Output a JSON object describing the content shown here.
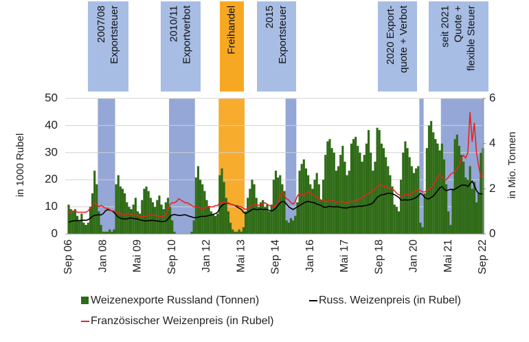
{
  "chart_data": {
    "type": "bar-line",
    "y_label": "in 1000 Rubel",
    "y2_label": "in Mio. Tonnen",
    "ylim": [
      0,
      50
    ],
    "yticks": [
      0,
      10,
      20,
      30,
      40,
      50
    ],
    "y2lim": [
      0,
      6
    ],
    "y2ticks": [
      0,
      2,
      4,
      6
    ],
    "grid": true,
    "legend": "bottom",
    "categories": [
      "Sep 06",
      null,
      null,
      null,
      null,
      null,
      null,
      null,
      null,
      null,
      null,
      null,
      null,
      null,
      null,
      null,
      "Jan 08",
      null,
      null,
      null,
      null,
      null,
      null,
      null,
      null,
      null,
      null,
      null,
      null,
      null,
      null,
      null,
      "Mai 09",
      null,
      null,
      null,
      null,
      null,
      null,
      null,
      null,
      null,
      null,
      null,
      null,
      null,
      null,
      null,
      "Sep 10",
      null,
      null,
      null,
      null,
      null,
      null,
      null,
      null,
      null,
      null,
      null,
      null,
      null,
      null,
      null,
      "Jan 12",
      null,
      null,
      null,
      null,
      null,
      null,
      null,
      null,
      null,
      null,
      null,
      null,
      null,
      null,
      null,
      "Mai 13",
      null,
      null,
      null,
      null,
      null,
      null,
      null,
      null,
      null,
      null,
      null,
      null,
      null,
      null,
      null,
      "Sep 14",
      null,
      null,
      null,
      null,
      null,
      null,
      null,
      null,
      null,
      null,
      null,
      null,
      null,
      null,
      null,
      "Jan 16",
      null,
      null,
      null,
      null,
      null,
      null,
      null,
      null,
      null,
      null,
      null,
      null,
      null,
      null,
      null,
      "Mai 17",
      null,
      null,
      null,
      null,
      null,
      null,
      null,
      null,
      null,
      null,
      null,
      null,
      null,
      null,
      null,
      "Sep 18",
      null,
      null,
      null,
      null,
      null,
      null,
      null,
      null,
      null,
      null,
      null,
      null,
      null,
      null,
      null,
      "Jan 20",
      null,
      null,
      null,
      null,
      null,
      null,
      null,
      null,
      null,
      null,
      null,
      null,
      null,
      null,
      null,
      "Mai 21",
      null,
      null,
      null,
      null,
      null,
      null,
      null,
      null,
      null,
      null,
      null,
      null,
      null,
      null,
      null,
      "Sep 22"
    ],
    "periods": [
      {
        "lines": [
          "2007/08",
          "Exportsteuer"
        ],
        "span": [
          14,
          21
        ],
        "color": "#8ea2d4"
      },
      {
        "lines": [
          "2010/11",
          "Exportverbot"
        ],
        "span": [
          47,
          58
        ],
        "color": "#8ea2d4"
      },
      {
        "lines": [
          "Freihandel"
        ],
        "span": [
          70,
          81
        ],
        "color": "#f7a823"
      },
      {
        "lines": [
          "2015",
          "Exportsteuer"
        ],
        "span": [
          101,
          105
        ],
        "color": "#8ea2d4"
      },
      {
        "lines": [
          "2020 Export-",
          "quote + Verbot"
        ],
        "span": [
          163,
          164
        ],
        "color": "#8ea2d4"
      },
      {
        "lines": [
          "seit 2021",
          "Quote +",
          "flexible Steuer"
        ],
        "span": [
          173,
          192
        ],
        "color": "#8ea2d4"
      }
    ],
    "series": [
      {
        "name": "Weizenexporte Russland (Tonnen)",
        "type": "bar",
        "axis": "y2",
        "color": "#2f6b16",
        "values": [
          1.3,
          1.1,
          1.0,
          1.1,
          0.8,
          0.6,
          0.9,
          0.5,
          0.4,
          0.5,
          1.2,
          1.8,
          2.8,
          2.2,
          1.0,
          0.4,
          0.1,
          0.1,
          0.1,
          0.2,
          0.1,
          0.2,
          2.2,
          2.6,
          2.1,
          2.0,
          1.8,
          1.4,
          1.2,
          1.1,
          1.3,
          1.6,
          1.0,
          0.9,
          1.5,
          2.0,
          2.1,
          1.9,
          1.6,
          1.4,
          1.2,
          1.5,
          1.7,
          1.3,
          1.1,
          1.4,
          1.6,
          1.2,
          0.6,
          0.1,
          0.0,
          0,
          0,
          0,
          0,
          0,
          0,
          0.1,
          0.6,
          2.5,
          3.0,
          2.4,
          2.2,
          1.9,
          1.5,
          1.2,
          1.0,
          0.9,
          0.8,
          0.9,
          2.6,
          2.9,
          2.3,
          1.6,
          1.0,
          0.5,
          0.2,
          0.1,
          0.1,
          0.2,
          0.1,
          0.3,
          1.0,
          1.6,
          2.0,
          2.4,
          2.2,
          1.6,
          1.2,
          1.4,
          1.5,
          1.2,
          1.3,
          1.0,
          1.3,
          2.4,
          2.8,
          2.5,
          2.6,
          2.2,
          1.9,
          0.6,
          0.5,
          0.7,
          0.6,
          0.8,
          1.4,
          2.8,
          3.1,
          3.3,
          2.9,
          2.6,
          2.2,
          2.0,
          2.4,
          2.7,
          2.2,
          1.5,
          2.4,
          3.5,
          4.1,
          4.2,
          3.8,
          3.6,
          2.8,
          3.0,
          3.5,
          3.9,
          3.2,
          2.6,
          2.8,
          4.0,
          4.2,
          4.3,
          3.9,
          3.6,
          3.2,
          3.5,
          4.0,
          4.6,
          3.6,
          2.8,
          3.2,
          4.7,
          4.6,
          4.0,
          3.8,
          3.4,
          3.0,
          2.6,
          2.1,
          1.3,
          1.2,
          1.0,
          2.4,
          3.6,
          4.1,
          3.8,
          3.4,
          3.0,
          2.7,
          2.9,
          3.0,
          0.5,
          0.3,
          1.8,
          3.8,
          4.8,
          5.0,
          4.5,
          4.2,
          4.0,
          3.7,
          4.0,
          3.3,
          2.2,
          1.0,
          0.4,
          2.0,
          4.2,
          4.4,
          3.9,
          3.5,
          3.2,
          2.5,
          2.4,
          3.0,
          2.0,
          2.3,
          1.4,
          1.8,
          3.6,
          3.8
        ]
      },
      {
        "name": "Russ. Weizenpreis (in Rubel)",
        "type": "line",
        "color": "#000000",
        "values": [
          4.3,
          4.6,
          4.8,
          4.9,
          4.9,
          5.0,
          5.0,
          5.1,
          5.0,
          5.3,
          5.8,
          6.5,
          6.9,
          7.0,
          7.1,
          7.0,
          7.5,
          8.5,
          9.0,
          8.8,
          8.5,
          8.0,
          7.0,
          6.2,
          5.8,
          5.6,
          5.5,
          5.6,
          5.8,
          5.9,
          5.7,
          5.6,
          5.5,
          5.2,
          5.0,
          4.9,
          4.8,
          4.9,
          5.0,
          5.0,
          4.9,
          4.8,
          4.7,
          4.6,
          4.6,
          4.7,
          5.5,
          6.5,
          7.0,
          7.2,
          7.0,
          6.8,
          6.9,
          7.0,
          7.1,
          6.8,
          6.5,
          6.3,
          6.0,
          6.0,
          6.2,
          6.4,
          6.5,
          6.5,
          6.6,
          6.8,
          7.0,
          7.2,
          7.5,
          8.0,
          9.5,
          10.5,
          11.0,
          11.4,
          11.3,
          11.0,
          10.8,
          10.5,
          10.0,
          9.5,
          9.0,
          8.0,
          7.5,
          8.0,
          8.5,
          9.0,
          9.2,
          9.0,
          9.0,
          9.2,
          9.0,
          9.1,
          9.0,
          8.7,
          8.5,
          8.8,
          9.5,
          10.5,
          11.5,
          12.0,
          11.8,
          11.0,
          10.0,
          9.5,
          9.0,
          9.5,
          10.0,
          10.5,
          11.0,
          11.5,
          11.8,
          12.0,
          11.8,
          11.6,
          11.5,
          11.0,
          10.8,
          10.5,
          10.0,
          9.8,
          10.0,
          10.2,
          10.0,
          10.0,
          10.0,
          10.0,
          9.8,
          9.7,
          9.6,
          9.6,
          9.8,
          10.0,
          10.0,
          10.0,
          10.2,
          10.3,
          10.2,
          10.5,
          10.5,
          10.8,
          11.0,
          11.5,
          12.5,
          13.5,
          14.0,
          14.5,
          14.5,
          14.8,
          15.0,
          15.0,
          14.8,
          14.5,
          14.0,
          13.5,
          12.5,
          12.5,
          12.6,
          12.5,
          12.6,
          12.8,
          13.0,
          13.5,
          14.0,
          15.0,
          14.5,
          13.5,
          13.0,
          13.0,
          13.5,
          14.0,
          15.0,
          16.0,
          17.0,
          17.5,
          16.5,
          16.0,
          16.2,
          16.5,
          16.3,
          16.5,
          17.0,
          17.5,
          18.0,
          18.0,
          18.0,
          17.5,
          18.5,
          19.5,
          18.0,
          16.0,
          15.0,
          14.8,
          14.8
        ]
      },
      {
        "name": "Französischer Weizenpreis (in Rubel)",
        "type": "line",
        "color": "#e8231f",
        "values": [
          7.5,
          8.0,
          8.5,
          8.5,
          8.0,
          8.0,
          8.0,
          8.0,
          8.0,
          8.5,
          9.5,
          10.5,
          11.5,
          11.0,
          10.0,
          10.5,
          10.0,
          9.5,
          9.5,
          9.0,
          8.5,
          8.5,
          8.0,
          8.0,
          7.5,
          7.0,
          7.0,
          7.5,
          7.5,
          7.0,
          7.0,
          7.0,
          6.8,
          6.5,
          6.5,
          6.5,
          6.5,
          7.0,
          7.0,
          7.0,
          6.8,
          6.8,
          6.5,
          6.5,
          6.5,
          7.0,
          9.0,
          11.0,
          11.5,
          11.5,
          12.0,
          13.0,
          12.5,
          12.0,
          11.5,
          11.5,
          11.0,
          10.5,
          10.0,
          10.0,
          10.0,
          9.5,
          9.5,
          9.5,
          10.0,
          10.2,
          10.0,
          10.0,
          10.5,
          10.5,
          11.5,
          11.5,
          11.5,
          11.5,
          11.5,
          11.0,
          10.8,
          10.5,
          10.5,
          10.2,
          10.0,
          9.5,
          9.0,
          9.5,
          10.0,
          10.5,
          11.0,
          11.0,
          10.5,
          11.0,
          11.0,
          11.5,
          11.0,
          10.5,
          10.5,
          10.0,
          10.5,
          12.0,
          14.0,
          15.5,
          14.0,
          13.0,
          12.5,
          11.5,
          11.0,
          12.0,
          14.0,
          15.0,
          14.5,
          14.0,
          15.0,
          15.5,
          15.0,
          14.5,
          14.0,
          13.5,
          13.0,
          12.5,
          12.5,
          12.0,
          12.0,
          12.5,
          12.5,
          12.0,
          11.5,
          12.0,
          12.0,
          12.0,
          11.5,
          11.5,
          12.0,
          12.0,
          12.0,
          12.5,
          12.5,
          13.0,
          13.5,
          14.0,
          14.5,
          15.0,
          15.5,
          16.0,
          16.5,
          17.5,
          18.0,
          18.0,
          17.5,
          17.5,
          17.0,
          17.0,
          16.5,
          16.0,
          15.0,
          14.5,
          14.0,
          14.0,
          14.5,
          14.5,
          14.5,
          15.0,
          15.5,
          16.0,
          16.5,
          16.0,
          15.5,
          15.5,
          16.0,
          16.5,
          17.0,
          18.0,
          19.5,
          21.0,
          22.0,
          21.0,
          20.0,
          20.0,
          21.0,
          22.0,
          22.5,
          23.0,
          24.0,
          25.0,
          28.0,
          29.0,
          28.0,
          30.0,
          45.0,
          34.0,
          41.0,
          30.0,
          25.0,
          21.0,
          21.0
        ]
      }
    ]
  }
}
